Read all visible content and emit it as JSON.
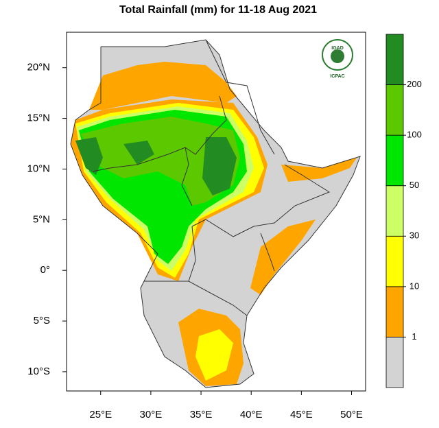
{
  "chart_data": {
    "type": "map",
    "title": "Total Rainfall (mm) for 11-18 Aug 2021",
    "xlim": [
      21.6,
      51.4
    ],
    "ylim": [
      -11.9,
      23.5
    ],
    "xticks": [
      {
        "value": 25,
        "label": "25°E"
      },
      {
        "value": 30,
        "label": "30°E"
      },
      {
        "value": 35,
        "label": "35°E"
      },
      {
        "value": 40,
        "label": "40°E"
      },
      {
        "value": 45,
        "label": "45°E"
      },
      {
        "value": 50,
        "label": "50°E"
      }
    ],
    "yticks": [
      {
        "value": 20,
        "label": "20°N"
      },
      {
        "value": 15,
        "label": "15°N"
      },
      {
        "value": 10,
        "label": "10°N"
      },
      {
        "value": 5,
        "label": "5°N"
      },
      {
        "value": 0,
        "label": "0°"
      },
      {
        "value": -5,
        "label": "5°S"
      },
      {
        "value": -10,
        "label": "10°S"
      }
    ],
    "colorbar": {
      "levels": [
        1,
        10,
        30,
        50,
        100,
        200
      ],
      "colors": [
        "#d3d3d3",
        "#ffa500",
        "#ffff00",
        "#ccff66",
        "#00e600",
        "#5cc800",
        "#228b22"
      ]
    },
    "logo": {
      "name": "IGAD",
      "org": "ICPAC"
    }
  }
}
